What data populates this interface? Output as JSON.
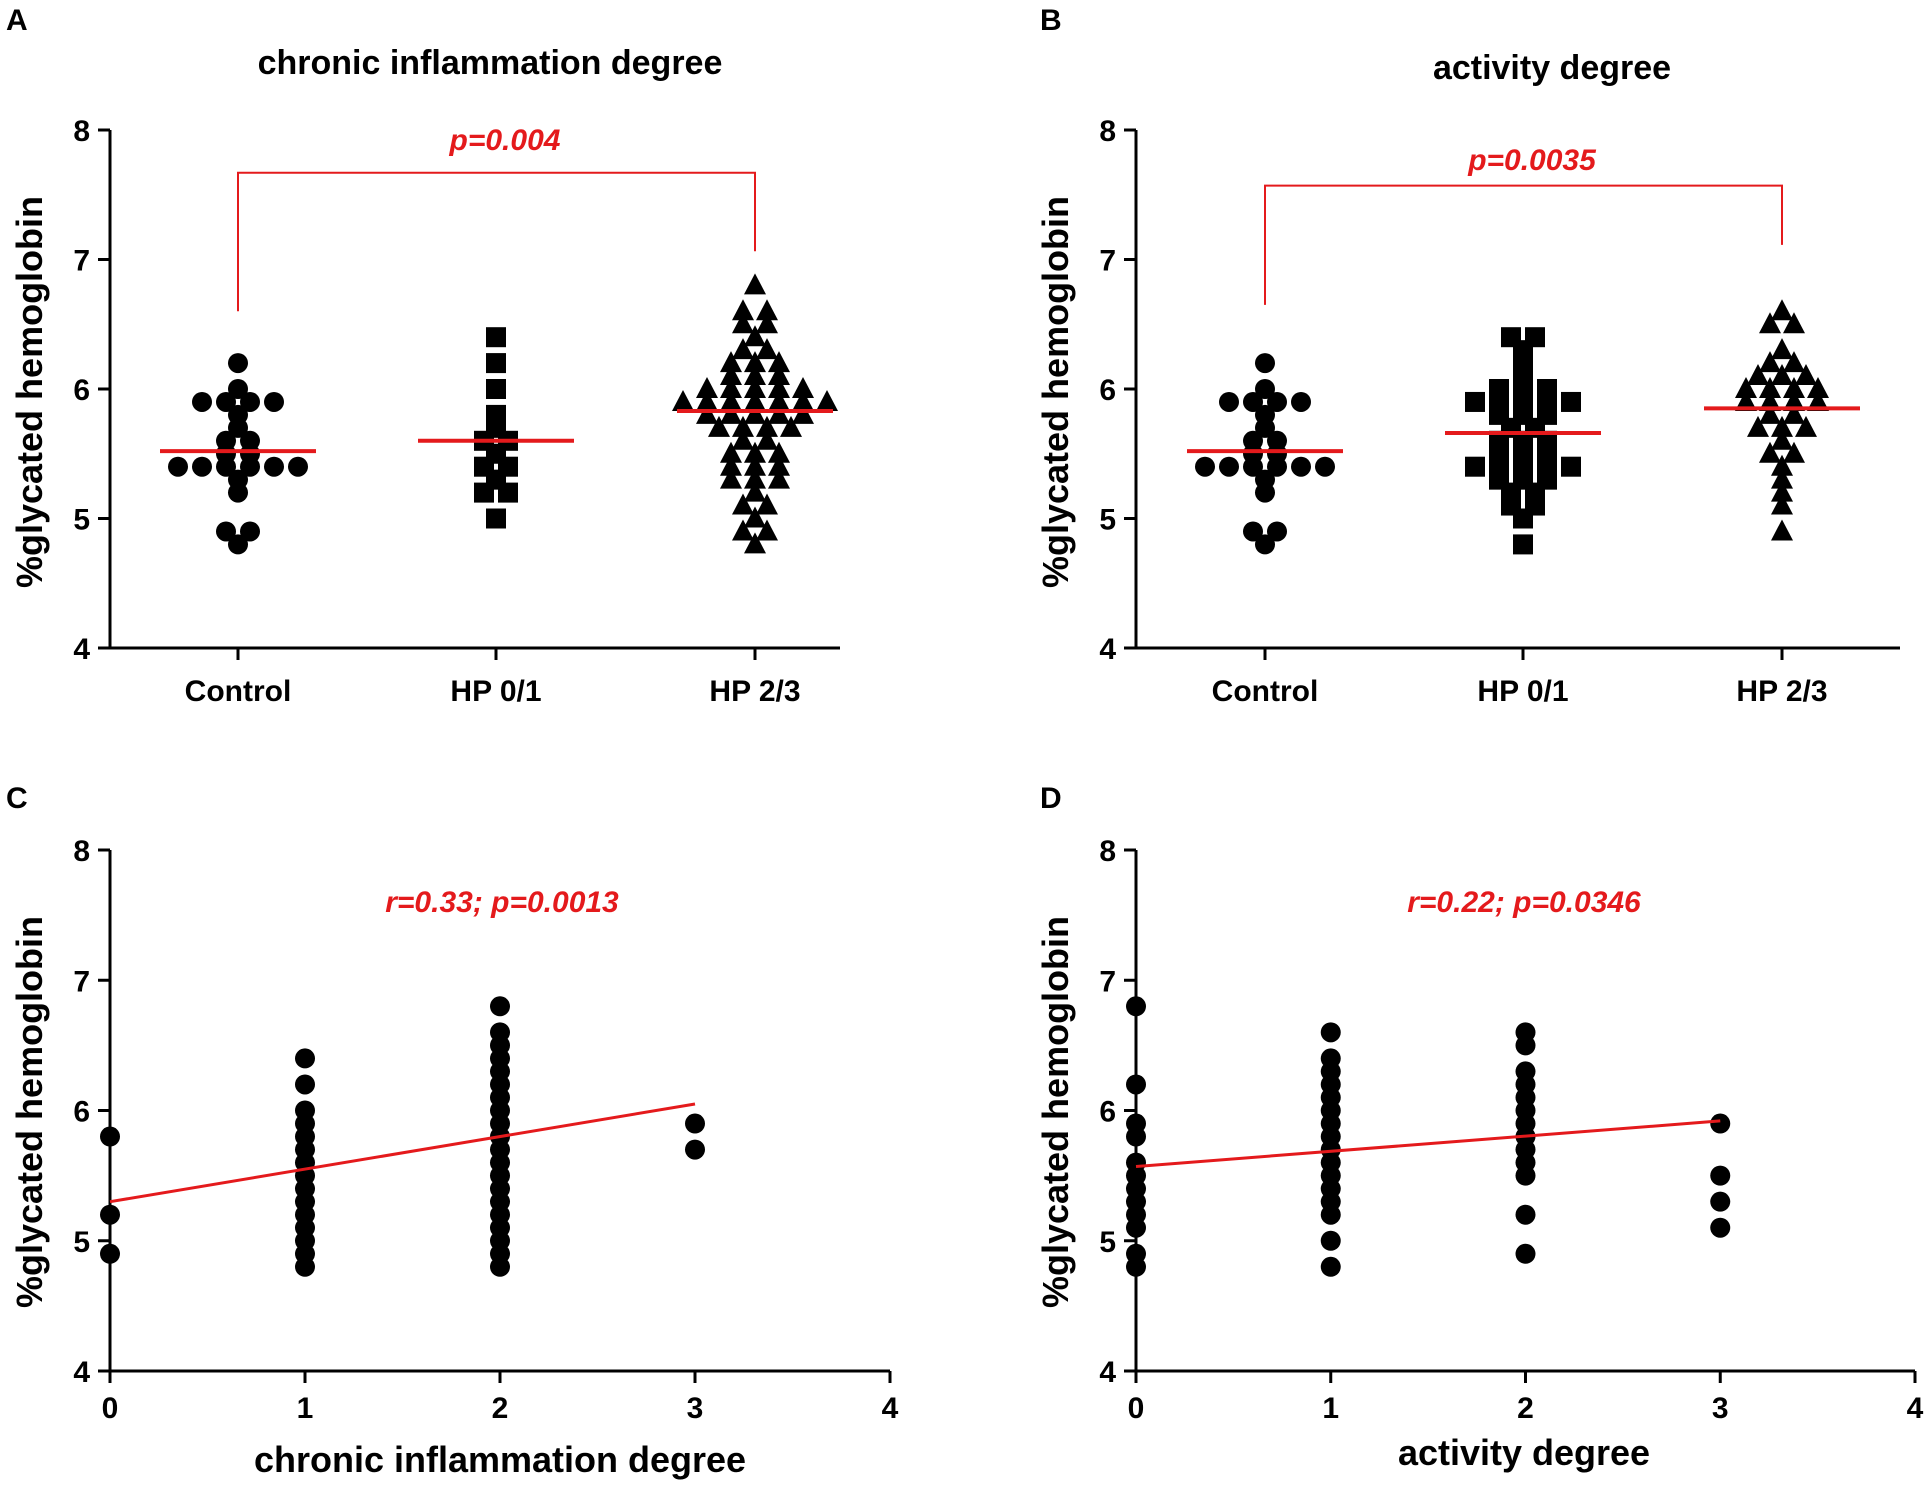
{
  "panels": [
    {
      "letter": "A",
      "title": "chronic inflammation degree",
      "ylabel": "%glycated hemoglobin",
      "annotation": "p=0.004"
    },
    {
      "letter": "B",
      "title": "activity degree",
      "ylabel": "%glycated hemoglobin",
      "annotation": "p=0.0035"
    },
    {
      "letter": "C",
      "xlabel": "chronic inflammation degree",
      "ylabel": "%glycated hemoglobin",
      "annotation": "r=0.33; p=0.0013"
    },
    {
      "letter": "D",
      "xlabel": "activity degree",
      "ylabel": "%glycated hemoglobin",
      "annotation": "r=0.22; p=0.0346"
    }
  ],
  "colors": {
    "points": "#000000",
    "mean_line": "#e41a1c",
    "bracket": "#e41a1c",
    "regression": "#e41a1c"
  },
  "chart_data": [
    {
      "panel": "A",
      "type": "scatter",
      "subtype": "dot-plot",
      "title": "chronic inflammation degree",
      "xlabel": "",
      "ylabel": "%glycated hemoglobin",
      "ylim": [
        4,
        8
      ],
      "yticks": [
        "4",
        "5",
        "6",
        "7",
        "8"
      ],
      "categories": [
        "Control",
        "HP 0/1",
        "HP 2/3"
      ],
      "series": [
        {
          "name": "Control",
          "marker": "circle",
          "mean": 5.52,
          "values": [
            6.2,
            6.0,
            5.9,
            5.9,
            5.9,
            5.9,
            5.8,
            5.7,
            5.6,
            5.6,
            5.5,
            5.5,
            5.4,
            5.4,
            5.4,
            5.4,
            5.4,
            5.4,
            5.3,
            5.2,
            4.9,
            4.9,
            4.8
          ]
        },
        {
          "name": "HP 0/1",
          "marker": "square",
          "mean": 5.6,
          "values": [
            6.4,
            6.2,
            6.0,
            5.8,
            5.7,
            5.6,
            5.6,
            5.5,
            5.4,
            5.4,
            5.3,
            5.2,
            5.2,
            5.0
          ]
        },
        {
          "name": "HP 2/3",
          "marker": "triangle",
          "mean": 5.83,
          "values": [
            6.8,
            6.6,
            6.6,
            6.5,
            6.5,
            6.4,
            6.3,
            6.3,
            6.2,
            6.2,
            6.2,
            6.1,
            6.1,
            6.1,
            6.0,
            6.0,
            6.0,
            6.0,
            6.0,
            5.9,
            5.9,
            5.9,
            5.9,
            5.9,
            5.9,
            5.9,
            5.8,
            5.8,
            5.8,
            5.8,
            5.8,
            5.7,
            5.7,
            5.7,
            5.7,
            5.6,
            5.6,
            5.5,
            5.5,
            5.5,
            5.4,
            5.4,
            5.4,
            5.3,
            5.3,
            5.3,
            5.2,
            5.1,
            5.1,
            5.0,
            4.9,
            4.9,
            4.8
          ]
        }
      ],
      "comparison": {
        "from": "Control",
        "to": "HP 2/3",
        "label": "p=0.004"
      }
    },
    {
      "panel": "B",
      "type": "scatter",
      "subtype": "dot-plot",
      "title": "activity degree",
      "xlabel": "",
      "ylabel": "%glycated hemoglobin",
      "ylim": [
        4,
        8
      ],
      "yticks": [
        "4",
        "5",
        "6",
        "7",
        "8"
      ],
      "categories": [
        "Control",
        "HP 0/1",
        "HP 2/3"
      ],
      "series": [
        {
          "name": "Control",
          "marker": "circle",
          "mean": 5.52,
          "values": [
            6.2,
            6.0,
            5.9,
            5.9,
            5.9,
            5.9,
            5.8,
            5.7,
            5.6,
            5.6,
            5.5,
            5.5,
            5.4,
            5.4,
            5.4,
            5.4,
            5.4,
            5.4,
            5.3,
            5.2,
            4.9,
            4.9,
            4.8
          ]
        },
        {
          "name": "HP 0/1",
          "marker": "square",
          "mean": 5.66,
          "values": [
            6.4,
            6.4,
            6.3,
            6.2,
            6.1,
            6.0,
            6.0,
            6.0,
            5.9,
            5.9,
            5.9,
            5.9,
            5.9,
            5.8,
            5.8,
            5.8,
            5.7,
            5.7,
            5.6,
            5.6,
            5.6,
            5.5,
            5.5,
            5.5,
            5.4,
            5.4,
            5.4,
            5.4,
            5.4,
            5.3,
            5.3,
            5.3,
            5.2,
            5.2,
            5.1,
            5.1,
            5.0,
            4.8
          ]
        },
        {
          "name": "HP 2/3",
          "marker": "triangle",
          "mean": 5.85,
          "values": [
            6.6,
            6.5,
            6.5,
            6.3,
            6.2,
            6.2,
            6.1,
            6.1,
            6.1,
            6.0,
            6.0,
            6.0,
            6.0,
            5.9,
            5.9,
            5.9,
            5.9,
            5.8,
            5.8,
            5.7,
            5.7,
            5.7,
            5.6,
            5.5,
            5.5,
            5.4,
            5.3,
            5.2,
            5.1,
            4.9
          ]
        }
      ],
      "comparison": {
        "from": "Control",
        "to": "HP 2/3",
        "label": "p=0.0035"
      }
    },
    {
      "panel": "C",
      "type": "scatter",
      "title": "",
      "xlabel": "chronic inflammation degree",
      "ylabel": "%glycated hemoglobin",
      "xlim": [
        0,
        4
      ],
      "ylim": [
        4,
        8
      ],
      "xticks": [
        "0",
        "1",
        "2",
        "3",
        "4"
      ],
      "yticks": [
        "4",
        "5",
        "6",
        "7",
        "8"
      ],
      "points": [
        {
          "x": 0,
          "y": 5.8
        },
        {
          "x": 0,
          "y": 5.2
        },
        {
          "x": 0,
          "y": 4.9
        },
        {
          "x": 1,
          "y": 6.4
        },
        {
          "x": 1,
          "y": 6.2
        },
        {
          "x": 1,
          "y": 6.0
        },
        {
          "x": 1,
          "y": 5.9
        },
        {
          "x": 1,
          "y": 5.8
        },
        {
          "x": 1,
          "y": 5.7
        },
        {
          "x": 1,
          "y": 5.6
        },
        {
          "x": 1,
          "y": 5.5
        },
        {
          "x": 1,
          "y": 5.4
        },
        {
          "x": 1,
          "y": 5.3
        },
        {
          "x": 1,
          "y": 5.2
        },
        {
          "x": 1,
          "y": 5.1
        },
        {
          "x": 1,
          "y": 5.0
        },
        {
          "x": 1,
          "y": 4.9
        },
        {
          "x": 1,
          "y": 4.8
        },
        {
          "x": 2,
          "y": 6.8
        },
        {
          "x": 2,
          "y": 6.6
        },
        {
          "x": 2,
          "y": 6.5
        },
        {
          "x": 2,
          "y": 6.4
        },
        {
          "x": 2,
          "y": 6.3
        },
        {
          "x": 2,
          "y": 6.2
        },
        {
          "x": 2,
          "y": 6.1
        },
        {
          "x": 2,
          "y": 6.0
        },
        {
          "x": 2,
          "y": 5.9
        },
        {
          "x": 2,
          "y": 5.8
        },
        {
          "x": 2,
          "y": 5.7
        },
        {
          "x": 2,
          "y": 5.6
        },
        {
          "x": 2,
          "y": 5.5
        },
        {
          "x": 2,
          "y": 5.4
        },
        {
          "x": 2,
          "y": 5.3
        },
        {
          "x": 2,
          "y": 5.2
        },
        {
          "x": 2,
          "y": 5.1
        },
        {
          "x": 2,
          "y": 5.0
        },
        {
          "x": 2,
          "y": 4.9
        },
        {
          "x": 2,
          "y": 4.8
        },
        {
          "x": 3,
          "y": 5.9
        },
        {
          "x": 3,
          "y": 5.7
        }
      ],
      "regression": {
        "x0": 0,
        "y0": 5.3,
        "x1": 3,
        "y1": 6.05
      },
      "annotation": "r=0.33; p=0.0013"
    },
    {
      "panel": "D",
      "type": "scatter",
      "title": "",
      "xlabel": "activity degree",
      "ylabel": "%glycated hemoglobin",
      "xlim": [
        0,
        4
      ],
      "ylim": [
        4,
        8
      ],
      "xticks": [
        "0",
        "1",
        "2",
        "3",
        "4"
      ],
      "yticks": [
        "4",
        "5",
        "6",
        "7",
        "8"
      ],
      "points": [
        {
          "x": 0,
          "y": 6.8
        },
        {
          "x": 0,
          "y": 6.2
        },
        {
          "x": 0,
          "y": 5.9
        },
        {
          "x": 0,
          "y": 5.8
        },
        {
          "x": 0,
          "y": 5.6
        },
        {
          "x": 0,
          "y": 5.5
        },
        {
          "x": 0,
          "y": 5.4
        },
        {
          "x": 0,
          "y": 5.3
        },
        {
          "x": 0,
          "y": 5.2
        },
        {
          "x": 0,
          "y": 5.1
        },
        {
          "x": 0,
          "y": 4.9
        },
        {
          "x": 0,
          "y": 4.8
        },
        {
          "x": 1,
          "y": 6.6
        },
        {
          "x": 1,
          "y": 6.4
        },
        {
          "x": 1,
          "y": 6.3
        },
        {
          "x": 1,
          "y": 6.2
        },
        {
          "x": 1,
          "y": 6.1
        },
        {
          "x": 1,
          "y": 6.0
        },
        {
          "x": 1,
          "y": 5.9
        },
        {
          "x": 1,
          "y": 5.8
        },
        {
          "x": 1,
          "y": 5.7
        },
        {
          "x": 1,
          "y": 5.6
        },
        {
          "x": 1,
          "y": 5.5
        },
        {
          "x": 1,
          "y": 5.4
        },
        {
          "x": 1,
          "y": 5.3
        },
        {
          "x": 1,
          "y": 5.2
        },
        {
          "x": 1,
          "y": 5.0
        },
        {
          "x": 1,
          "y": 4.8
        },
        {
          "x": 2,
          "y": 6.6
        },
        {
          "x": 2,
          "y": 6.5
        },
        {
          "x": 2,
          "y": 6.3
        },
        {
          "x": 2,
          "y": 6.2
        },
        {
          "x": 2,
          "y": 6.1
        },
        {
          "x": 2,
          "y": 6.0
        },
        {
          "x": 2,
          "y": 5.9
        },
        {
          "x": 2,
          "y": 5.8
        },
        {
          "x": 2,
          "y": 5.7
        },
        {
          "x": 2,
          "y": 5.6
        },
        {
          "x": 2,
          "y": 5.5
        },
        {
          "x": 2,
          "y": 5.2
        },
        {
          "x": 2,
          "y": 4.9
        },
        {
          "x": 3,
          "y": 5.9
        },
        {
          "x": 3,
          "y": 5.5
        },
        {
          "x": 3,
          "y": 5.3
        },
        {
          "x": 3,
          "y": 5.1
        }
      ],
      "regression": {
        "x0": 0,
        "y0": 5.57,
        "x1": 3,
        "y1": 5.92
      },
      "annotation": "r=0.22; p=0.0346"
    }
  ]
}
